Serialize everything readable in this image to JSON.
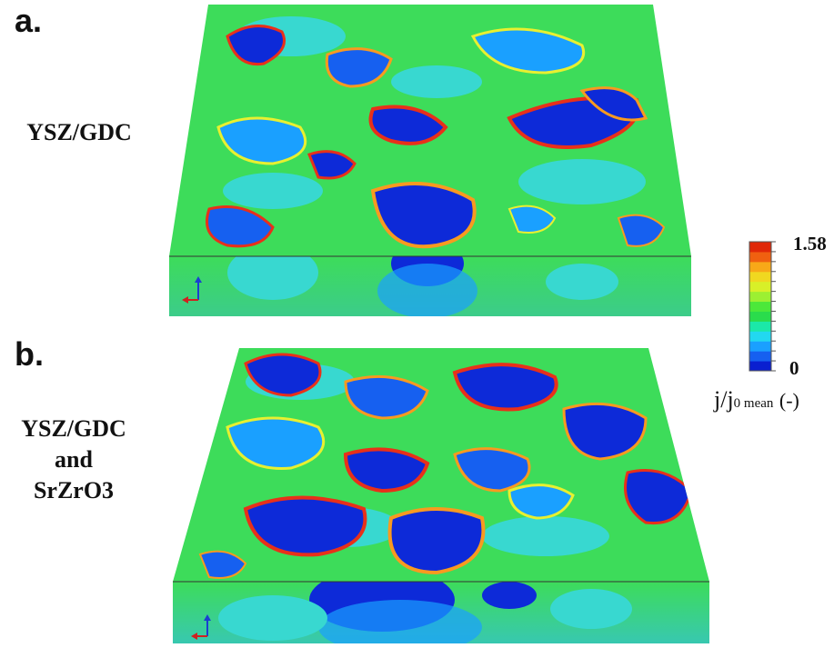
{
  "panels": [
    {
      "letter": "a.",
      "label_lines": [
        "YSZ/GDC"
      ]
    },
    {
      "letter": "b.",
      "label_lines": [
        "YSZ/GDC",
        "and",
        "SrZrO3"
      ]
    }
  ],
  "colorbar": {
    "max_label": "1.58",
    "min_label": "0",
    "caption_main": "j/j",
    "caption_sub": "0 mean",
    "caption_unit": "(-)",
    "colors": [
      "#0a1fd0",
      "#1660f0",
      "#1aa0ff",
      "#22d8f0",
      "#1be8a8",
      "#2adc4c",
      "#4ce83a",
      "#9cf032",
      "#d8f028",
      "#f0d820",
      "#f8a818",
      "#f06010",
      "#e02808"
    ]
  },
  "palette": {
    "field_green": "#3ddc5a",
    "field_cyan": "#38d8d0",
    "field_blue": "#0d2ad8",
    "field_red": "#e8301a",
    "field_yellow": "#e8f030",
    "field_orange": "#f89a20"
  }
}
